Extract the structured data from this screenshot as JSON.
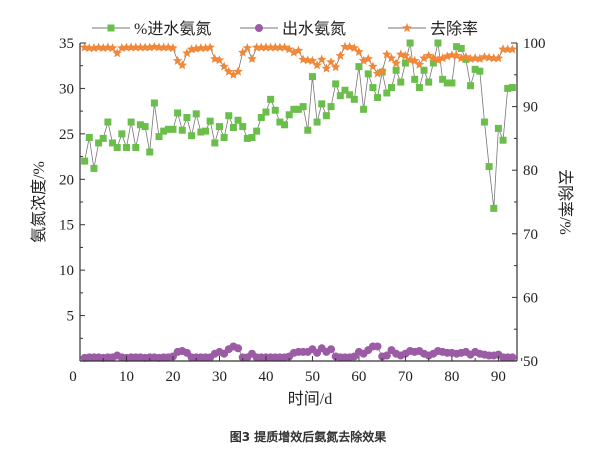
{
  "chart_data": {
    "type": "line",
    "title": "",
    "caption": "图3  提质增效后氨氮去除效果",
    "xlabel": "时间/d",
    "ylabel_left": "氨氮浓度/%",
    "ylabel_right": "去除率/%",
    "xlim": [
      0,
      94
    ],
    "ylim_left": [
      0,
      35
    ],
    "ylim_right": [
      50,
      100
    ],
    "xticks": [
      0,
      10,
      20,
      30,
      40,
      50,
      60,
      70,
      80,
      90
    ],
    "yticks_left": [
      5,
      10,
      15,
      20,
      25,
      30,
      35
    ],
    "yticks_right": [
      50,
      60,
      70,
      80,
      90,
      100
    ],
    "grid": false,
    "legend_placement": "top",
    "x": [
      1,
      2,
      3,
      4,
      5,
      6,
      7,
      8,
      9,
      10,
      11,
      12,
      13,
      14,
      15,
      16,
      17,
      18,
      19,
      20,
      21,
      22,
      23,
      24,
      25,
      26,
      27,
      28,
      29,
      30,
      31,
      32,
      33,
      34,
      35,
      36,
      37,
      38,
      39,
      40,
      41,
      42,
      43,
      44,
      45,
      46,
      47,
      48,
      49,
      50,
      51,
      52,
      53,
      54,
      55,
      56,
      57,
      58,
      59,
      60,
      61,
      62,
      63,
      64,
      65,
      66,
      67,
      68,
      69,
      70,
      71,
      72,
      73,
      74,
      75,
      76,
      77,
      78,
      79,
      80,
      81,
      82,
      83,
      84,
      85,
      86,
      87,
      88,
      89,
      90,
      91,
      92,
      93
    ],
    "series": [
      {
        "name": "%进水氨氮",
        "axis": "left",
        "color": "#6abf4b",
        "marker": "square",
        "values": [
          22.0,
          24.6,
          21.2,
          24.0,
          24.5,
          26.3,
          24.0,
          23.5,
          25.0,
          23.5,
          26.3,
          23.5,
          26.0,
          25.8,
          23.0,
          28.4,
          24.7,
          25.3,
          25.5,
          25.5,
          27.3,
          25.4,
          26.8,
          24.8,
          27.2,
          25.2,
          25.3,
          26.4,
          24.0,
          25.8,
          24.6,
          27.0,
          25.7,
          26.5,
          25.8,
          24.5,
          24.6,
          25.3,
          26.8,
          27.4,
          28.8,
          27.6,
          26.3,
          26.0,
          27.1,
          27.7,
          27.7,
          28.0,
          25.4,
          31.3,
          26.3,
          28.3,
          27.0,
          28.0,
          30.5,
          29.2,
          29.8,
          29.3,
          28.8,
          32.4,
          27.7,
          31.6,
          30.1,
          29.0,
          31.8,
          29.5,
          30.1,
          32.0,
          30.7,
          32.8,
          35.0,
          31.0,
          30.1,
          32.0,
          30.7,
          32.8,
          35.0,
          31.0,
          30.6,
          30.6,
          34.6,
          34.4,
          33.2,
          30.3,
          32.1,
          31.9,
          26.3,
          21.4,
          16.8,
          25.6,
          24.3,
          30.0,
          30.1
        ]
      },
      {
        "name": "出水氨氮",
        "axis": "left",
        "color": "#9b5ba5",
        "marker": "circle",
        "values": [
          0.35,
          0.4,
          0.4,
          0.4,
          0.35,
          0.4,
          0.4,
          0.6,
          0.4,
          0.35,
          0.4,
          0.4,
          0.4,
          0.35,
          0.4,
          0.4,
          0.35,
          0.4,
          0.4,
          0.5,
          1.0,
          1.1,
          0.9,
          0.4,
          0.4,
          0.4,
          0.4,
          0.4,
          0.8,
          1.0,
          0.8,
          1.3,
          1.6,
          1.4,
          0.4,
          0.4,
          0.8,
          0.4,
          0.4,
          0.4,
          0.4,
          0.4,
          0.4,
          0.4,
          0.5,
          0.9,
          1.0,
          1.0,
          1.0,
          1.3,
          0.9,
          1.4,
          1.0,
          1.3,
          0.5,
          0.4,
          0.4,
          0.4,
          0.5,
          1.0,
          0.8,
          1.2,
          1.6,
          1.6,
          0.5,
          0.6,
          1.2,
          0.8,
          0.6,
          0.8,
          1.1,
          1.0,
          1.1,
          0.8,
          0.6,
          0.8,
          1.1,
          1.0,
          0.9,
          0.9,
          0.8,
          0.9,
          1.0,
          0.7,
          1.0,
          0.8,
          0.7,
          0.6,
          0.6,
          0.7,
          0.4,
          0.4,
          0.4
        ]
      },
      {
        "name": "去除率",
        "axis": "right",
        "color": "#f0883a",
        "marker": "star",
        "values": [
          99.3,
          99.2,
          99.2,
          99.3,
          99.2,
          99.3,
          99.2,
          98.4,
          99.2,
          99.3,
          99.3,
          99.3,
          99.3,
          99.3,
          99.3,
          99.4,
          99.3,
          99.3,
          99.3,
          99.2,
          97.2,
          96.5,
          98.4,
          99.0,
          99.1,
          99.2,
          99.2,
          99.3,
          97.5,
          97.3,
          96.3,
          95.5,
          95.0,
          95.5,
          98.5,
          99.2,
          97.5,
          99.3,
          99.3,
          99.3,
          99.3,
          99.3,
          99.3,
          99.3,
          99.0,
          98.5,
          98.8,
          97.4,
          97.3,
          97.2,
          96.5,
          97.4,
          96.0,
          97.0,
          96.2,
          98.0,
          99.4,
          99.4,
          99.2,
          98.6,
          97.2,
          97.5,
          96.3,
          95.2,
          95.5,
          98.2,
          97.6,
          96.8,
          98.2,
          98.0,
          97.3,
          97.2,
          96.6,
          97.6,
          98.0,
          97.6,
          97.3,
          97.6,
          97.9,
          98.1,
          98.0,
          97.6,
          97.8,
          97.5,
          97.6,
          97.5,
          97.8,
          97.7,
          97.6,
          97.6,
          99.0,
          99.0,
          99.0
        ]
      }
    ]
  }
}
